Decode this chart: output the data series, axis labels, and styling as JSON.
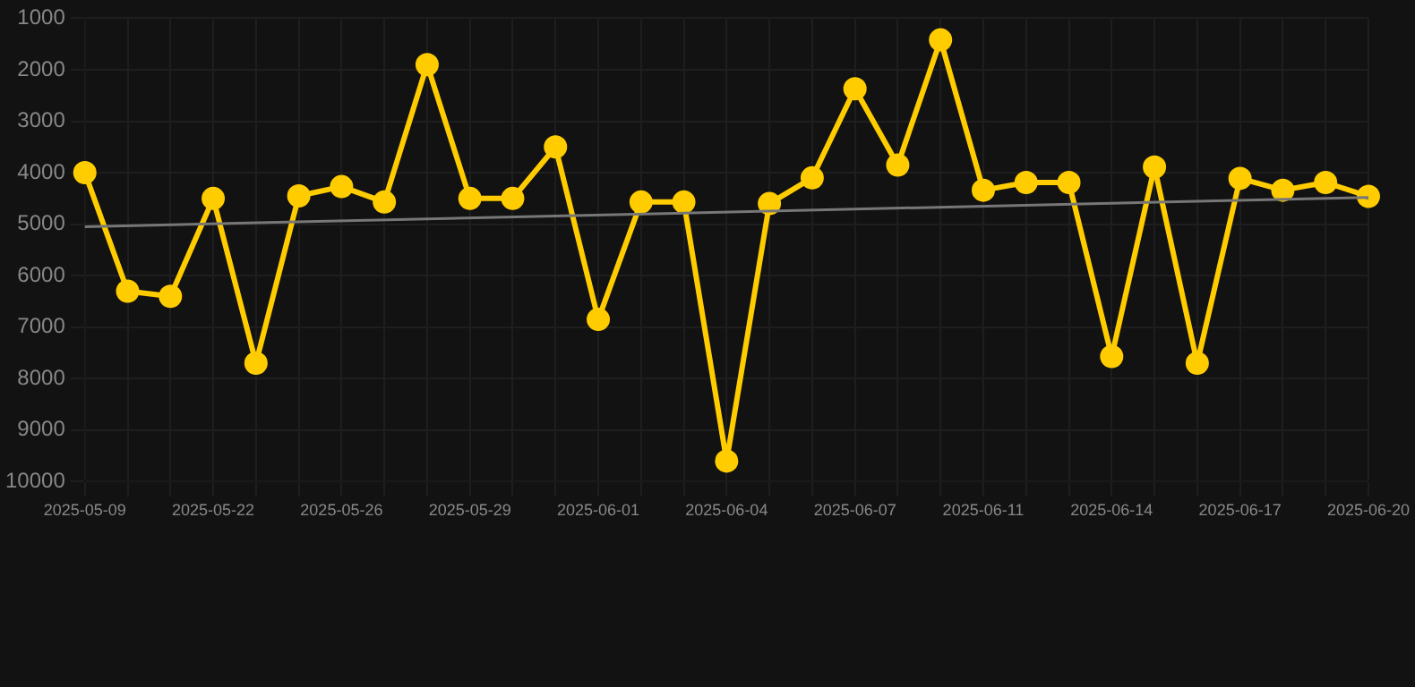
{
  "chart_data": {
    "type": "line",
    "categories": [
      "2025-05-09",
      null,
      null,
      "2025-05-22",
      null,
      null,
      "2025-05-26",
      null,
      null,
      "2025-05-29",
      null,
      null,
      "2025-06-01",
      null,
      null,
      "2025-06-04",
      null,
      null,
      "2025-06-07",
      null,
      null,
      "2025-06-11",
      null,
      null,
      "2025-06-14",
      null,
      null,
      "2025-06-17",
      null,
      null,
      "2025-06-20"
    ],
    "series": [
      {
        "color": "#ffcc00",
        "marker": "circle",
        "values": [
          4000,
          6300,
          6400,
          4500,
          7700,
          4450,
          4270,
          4570,
          1900,
          4500,
          4500,
          3500,
          6850,
          4570,
          4570,
          9600,
          4600,
          4100,
          2370,
          3850,
          1420,
          4340,
          4190,
          4190,
          7570,
          3890,
          7700,
          4110,
          4340,
          4190,
          4460
        ]
      },
      {
        "color": "#777777",
        "marker": "none",
        "values": [
          5050,
          null,
          null,
          null,
          null,
          null,
          null,
          null,
          null,
          null,
          null,
          null,
          null,
          null,
          null,
          null,
          null,
          null,
          null,
          null,
          null,
          null,
          null,
          null,
          null,
          null,
          null,
          null,
          null,
          null,
          4480
        ]
      }
    ],
    "ylim": [
      10000,
      1000
    ],
    "yticks": [
      1000,
      2000,
      3000,
      4000,
      5000,
      6000,
      7000,
      8000,
      9000,
      10000
    ],
    "grid": true,
    "legend": false
  }
}
